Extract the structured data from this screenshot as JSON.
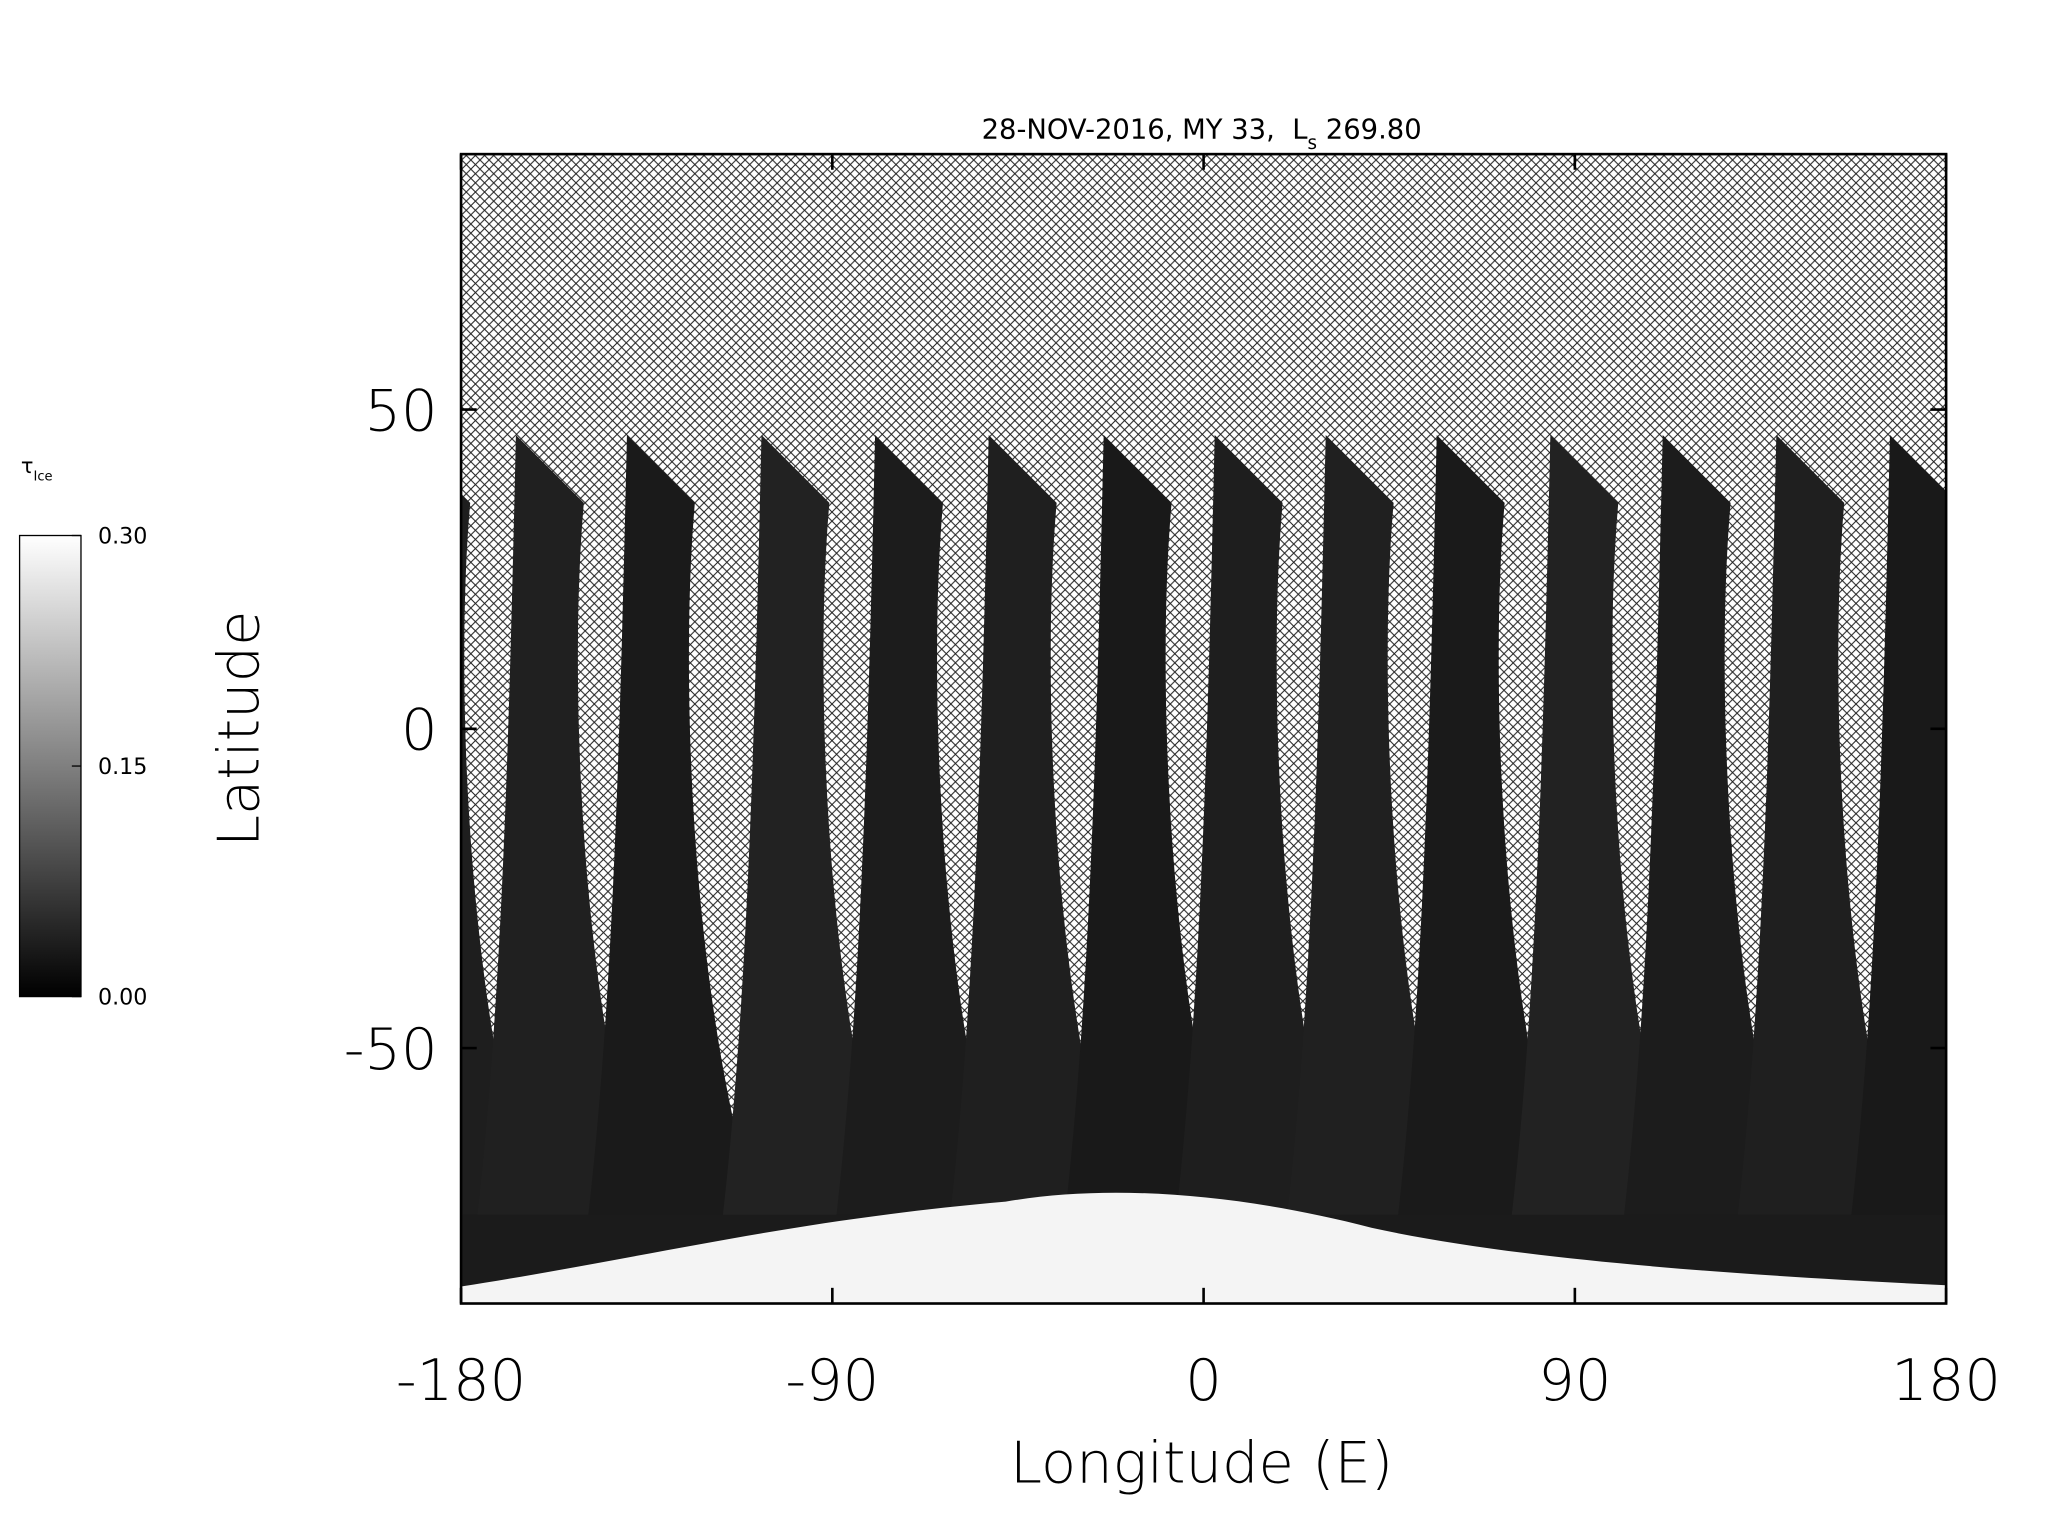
{
  "chart_data": {
    "type": "heatmap",
    "title": [
      "28-NOV-2016, MY 33,  L",
      "s",
      " 269.80"
    ],
    "x_label": "Longitude (E)",
    "y_label": "Latitude",
    "xlim": [
      -180,
      180
    ],
    "xticks": [
      -180,
      -90,
      0,
      90,
      180
    ],
    "ylim": [
      -90,
      90
    ],
    "yticks": [
      -50,
      0,
      50
    ],
    "colorbar": {
      "label": [
        "τ",
        "Ice"
      ],
      "lim": [
        0,
        0.3
      ],
      "ticks": [
        {
          "value": 0,
          "label": "0.00"
        },
        {
          "value": 0.15,
          "label": "0.15"
        },
        {
          "value": 0.3,
          "label": "0.30"
        }
      ]
    }
  }
}
